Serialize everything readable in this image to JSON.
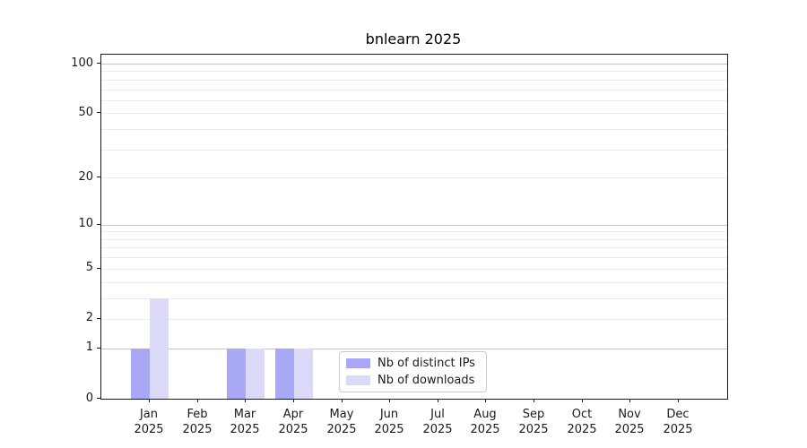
{
  "title": "bnlearn 2025",
  "chart_data": {
    "type": "bar",
    "title": "bnlearn 2025",
    "categories": [
      "Jan 2025",
      "Feb 2025",
      "Mar 2025",
      "Apr 2025",
      "May 2025",
      "Jun 2025",
      "Jul 2025",
      "Aug 2025",
      "Sep 2025",
      "Oct 2025",
      "Nov 2025",
      "Dec 2025"
    ],
    "series": [
      {
        "name": "Nb of distinct IPs",
        "color": "#a8a8f5",
        "values": [
          1,
          0,
          1,
          1,
          0,
          0,
          0,
          0,
          0,
          0,
          0,
          0
        ]
      },
      {
        "name": "Nb of downloads",
        "color": "#dadaf8",
        "values": [
          3,
          0,
          1,
          1,
          0,
          0,
          0,
          0,
          0,
          0,
          0,
          0
        ]
      }
    ],
    "xlabel": "",
    "ylabel": "",
    "y_scale": "log10(1+x)",
    "y_ticks": [
      0,
      1,
      2,
      5,
      10,
      20,
      50,
      100
    ],
    "y_minor_grid": [
      2,
      3,
      4,
      5,
      6,
      7,
      8,
      9,
      20,
      30,
      40,
      50,
      60,
      70,
      80,
      90
    ],
    "y_major_grid": [
      1,
      10,
      100
    ],
    "ylim": [
      0,
      113
    ],
    "grid": "horizontal",
    "legend_position": "lower center",
    "colors": {
      "major_grid": "#c4c4c4",
      "minor_grid": "#ececec",
      "spine": "#1a1a1a",
      "legend_border": "#cccccc"
    }
  }
}
